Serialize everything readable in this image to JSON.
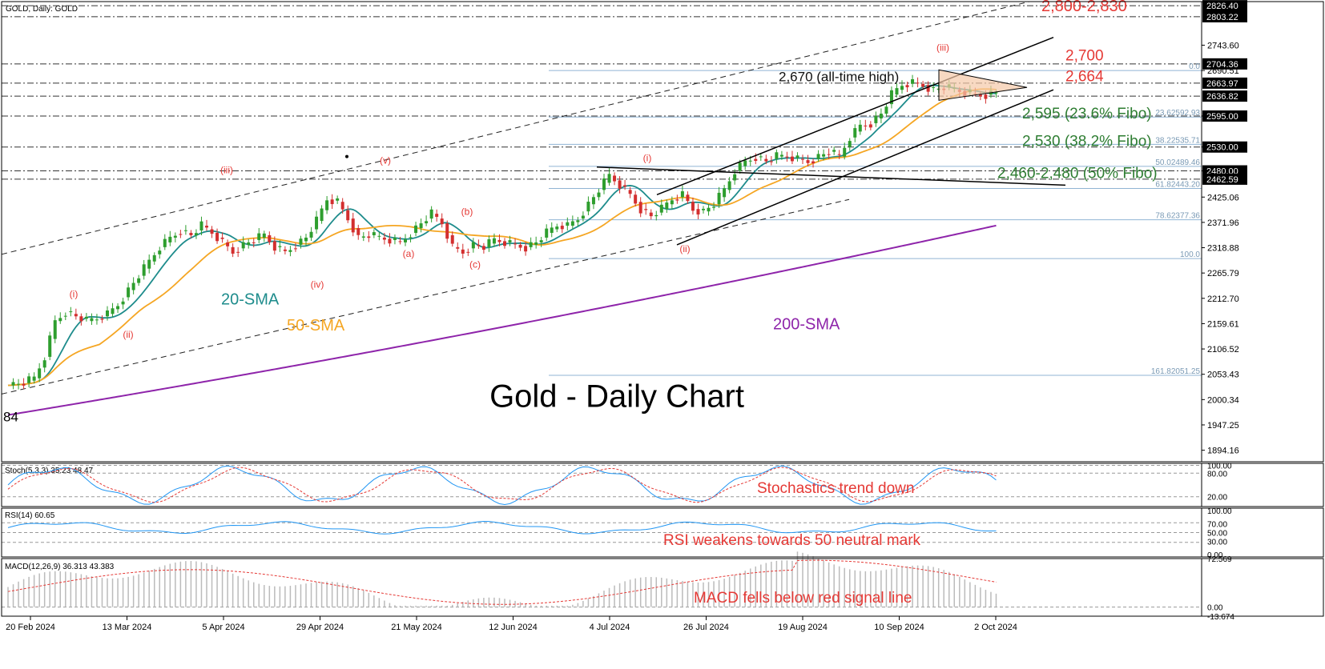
{
  "chart_data": {
    "type": "candlestick",
    "header": "GOLD, Daily: GOLD",
    "title": "Gold - Daily Chart",
    "stray_label": "84",
    "dates": [
      "20 Feb 2024",
      "13 Mar 2024",
      "5 Apr 2024",
      "29 Apr 2024",
      "21 May 2024",
      "12 Jun 2024",
      "4 Jul 2024",
      "26 Jul 2024",
      "19 Aug 2024",
      "10 Sep 2024",
      "2 Oct 2024"
    ],
    "y_axis_ticks": [
      "2743.60",
      "2690.51",
      "2595.00",
      "2530.00",
      "2480.00",
      "2425.06",
      "2371.96",
      "2318.88",
      "2265.79",
      "2212.70",
      "2159.61",
      "2106.52",
      "2053.43",
      "2000.34",
      "1947.25",
      "1894.16"
    ],
    "price_labels": [
      "2826.40",
      "2803.22",
      "2704.36",
      "2663.97",
      "2636.82",
      "2595.00",
      "2530.00",
      "2480.00",
      "2462.59"
    ],
    "ylim": [
      1870,
      2835
    ],
    "close_series": [
      [
        0,
        2030
      ],
      [
        6,
        2035
      ],
      [
        10,
        2045
      ],
      [
        14,
        2090
      ],
      [
        18,
        2165
      ],
      [
        22,
        2185
      ],
      [
        26,
        2175
      ],
      [
        30,
        2165
      ],
      [
        34,
        2170
      ],
      [
        38,
        2180
      ],
      [
        42,
        2200
      ],
      [
        46,
        2230
      ],
      [
        50,
        2260
      ],
      [
        54,
        2290
      ],
      [
        58,
        2320
      ],
      [
        62,
        2340
      ],
      [
        66,
        2355
      ],
      [
        70,
        2345
      ],
      [
        74,
        2365
      ],
      [
        78,
        2350
      ],
      [
        82,
        2330
      ],
      [
        86,
        2310
      ],
      [
        90,
        2325
      ],
      [
        94,
        2335
      ],
      [
        98,
        2345
      ],
      [
        102,
        2320
      ],
      [
        106,
        2310
      ],
      [
        110,
        2325
      ],
      [
        114,
        2340
      ],
      [
        118,
        2375
      ],
      [
        122,
        2420
      ],
      [
        126,
        2415
      ],
      [
        130,
        2380
      ],
      [
        134,
        2340
      ],
      [
        138,
        2345
      ],
      [
        142,
        2340
      ],
      [
        146,
        2335
      ],
      [
        150,
        2330
      ],
      [
        154,
        2350
      ],
      [
        158,
        2370
      ],
      [
        162,
        2390
      ],
      [
        166,
        2370
      ],
      [
        170,
        2320
      ],
      [
        174,
        2310
      ],
      [
        178,
        2325
      ],
      [
        182,
        2320
      ],
      [
        186,
        2335
      ],
      [
        190,
        2330
      ],
      [
        194,
        2325
      ],
      [
        198,
        2320
      ],
      [
        202,
        2330
      ],
      [
        206,
        2350
      ],
      [
        210,
        2365
      ],
      [
        214,
        2365
      ],
      [
        218,
        2380
      ],
      [
        222,
        2410
      ],
      [
        226,
        2440
      ],
      [
        230,
        2470
      ],
      [
        234,
        2450
      ],
      [
        238,
        2430
      ],
      [
        242,
        2400
      ],
      [
        246,
        2385
      ],
      [
        250,
        2400
      ],
      [
        254,
        2420
      ],
      [
        258,
        2430
      ],
      [
        262,
        2400
      ],
      [
        266,
        2395
      ],
      [
        270,
        2410
      ],
      [
        274,
        2440
      ],
      [
        278,
        2480
      ],
      [
        282,
        2500
      ],
      [
        286,
        2510
      ],
      [
        290,
        2500
      ],
      [
        294,
        2510
      ],
      [
        298,
        2510
      ],
      [
        302,
        2505
      ],
      [
        306,
        2500
      ],
      [
        310,
        2510
      ],
      [
        314,
        2520
      ],
      [
        318,
        2510
      ],
      [
        322,
        2550
      ],
      [
        326,
        2575
      ],
      [
        330,
        2580
      ],
      [
        334,
        2600
      ],
      [
        338,
        2640
      ],
      [
        342,
        2660
      ],
      [
        346,
        2665
      ],
      [
        350,
        2660
      ],
      [
        354,
        2650
      ],
      [
        358,
        2655
      ],
      [
        362,
        2650
      ],
      [
        366,
        2645
      ],
      [
        370,
        2640
      ],
      [
        374,
        2640
      ],
      [
        378,
        2645
      ]
    ],
    "wave_labels": [
      {
        "text": "(i)",
        "color": "#e53935"
      },
      {
        "text": "(ii)",
        "color": "#e53935"
      },
      {
        "text": "(iii)",
        "color": "#e53935"
      },
      {
        "text": "(iv)",
        "color": "#e53935"
      },
      {
        "text": "(v)",
        "color": "#e53935"
      },
      {
        "text": "(a)",
        "color": "#e53935"
      },
      {
        "text": "(b)",
        "color": "#e53935"
      },
      {
        "text": "(c)",
        "color": "#e53935"
      },
      {
        "text": "(i)",
        "color": "#e53935"
      },
      {
        "text": "(ii)",
        "color": "#e53935"
      },
      {
        "text": "(iii)",
        "color": "#e53935"
      }
    ],
    "annotations": [
      {
        "text": "2,800-2,830",
        "color": "#e53935"
      },
      {
        "text": "2,700",
        "color": "#e53935"
      },
      {
        "text": "2,664",
        "color": "#e53935"
      },
      {
        "text": "2,670 (all-time high)",
        "color": "#111111"
      },
      {
        "text": "2,595 (23.6% Fibo)",
        "color": "#2e7d32"
      },
      {
        "text": "2,530 (38.2% Fibo)",
        "color": "#2e7d32"
      },
      {
        "text": "2,460-2,480 (50% Fibo)",
        "color": "#2e7d32"
      }
    ],
    "fibo_labels": [
      "0.0",
      "23.62592.93",
      "38.22535.71",
      "50.02489.46",
      "61.82443.20",
      "78.62377.36",
      "100.0",
      "161.82051.25"
    ],
    "sma_labels": [
      {
        "text": "20-SMA",
        "color": "#1e8c8c"
      },
      {
        "text": "50-SMA",
        "color": "#f5a623"
      },
      {
        "text": "200-SMA",
        "color": "#8e24aa"
      }
    ],
    "indicators": {
      "stoch": {
        "label": "Stoch(5,3,3) 35.23 48.47",
        "note": "Stochastics trend down",
        "ticks": [
          "100.00",
          "80.00",
          "20.00"
        ]
      },
      "rsi": {
        "label": "RSI(14) 60.65",
        "note": "RSI weakens towards 50 neutral mark",
        "ticks": [
          "100.00",
          "70.00",
          "50.00",
          "30.00",
          "0.00"
        ]
      },
      "macd": {
        "label": "MACD(12,26,9) 36.313 43.383",
        "note": "MACD fells below red signal line",
        "ticks": [
          "72.569",
          "0.00",
          "-13.674"
        ]
      }
    },
    "colors": {
      "bull": "#2e9e2e",
      "bear": "#d32f2f",
      "sma20": "#1e8c8c",
      "sma50": "#f5a623",
      "sma200": "#8e24aa",
      "signal": "#e53935",
      "indicator": "#2196f3"
    }
  }
}
